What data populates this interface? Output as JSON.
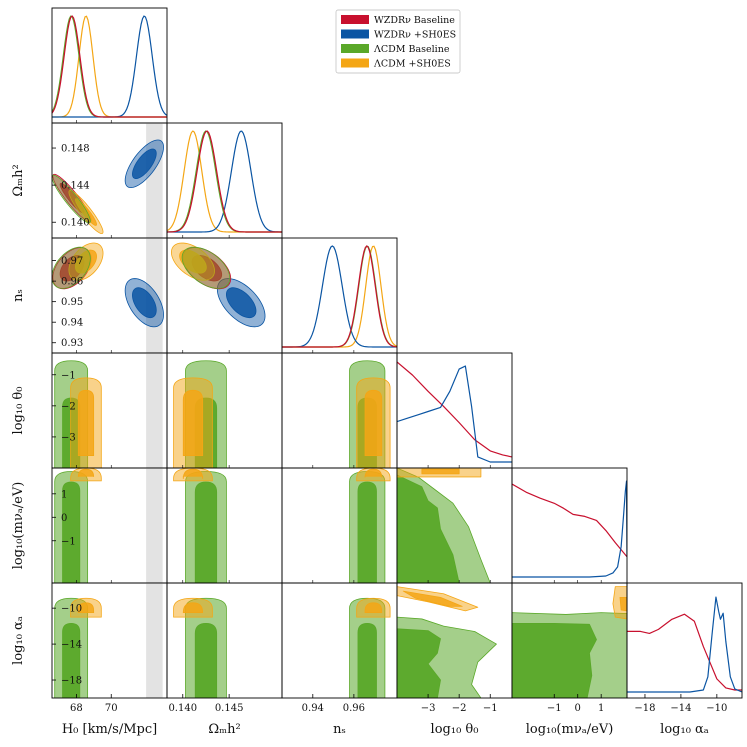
{
  "chart_data": {
    "type": "triangle-corner",
    "title": "",
    "legend": {
      "placement": "top-center",
      "entries": [
        {
          "label": "WZDRν Baseline",
          "color": "#c8102e"
        },
        {
          "label": "WZDRν +SH0ES",
          "color": "#0b55a3"
        },
        {
          "label": "ΛCDM Baseline",
          "color": "#5aa829"
        },
        {
          "label": "ΛCDM +SH0ES",
          "color": "#f4a615"
        }
      ]
    },
    "parameters": [
      {
        "key": "H0",
        "label": "H₀ [km/s/Mpc]",
        "range": [
          66.6,
          73.2
        ],
        "ticks": [
          68,
          70
        ]
      },
      {
        "key": "omh2",
        "label": "Ωₘh²",
        "range": [
          0.1383,
          0.1507
        ],
        "ticks": [
          0.14,
          0.145
        ],
        "tick_labels": [
          "0.140",
          "0.145"
        ],
        "y_ticks": [
          0.14,
          0.144,
          0.148
        ],
        "y_tick_labels": [
          "0.140",
          "0.144",
          "0.148"
        ]
      },
      {
        "key": "ns",
        "label": "nₛ",
        "range": [
          0.925,
          0.981
        ],
        "ticks": [
          0.94,
          0.96
        ],
        "tick_labels": [
          "0.94",
          "0.96"
        ],
        "y_ticks": [
          0.93,
          0.94,
          0.95,
          0.96,
          0.97
        ],
        "y_tick_labels": [
          "0.93",
          "0.94",
          "0.95",
          "0.96",
          "0.97"
        ]
      },
      {
        "key": "logtheta0",
        "label": "log₁₀ θ₀",
        "range": [
          -4.0,
          -0.3
        ],
        "ticks": [
          -3,
          -2,
          -1
        ],
        "y_ticks": [
          -3,
          -2,
          -1
        ],
        "tick_labels": [
          "−3",
          "−2",
          "−1"
        ]
      },
      {
        "key": "logm",
        "label": "log₁₀(mνₐ/eV)",
        "range": [
          -2.8,
          2.1
        ],
        "ticks": [
          -1,
          0,
          1
        ],
        "y_ticks": [
          -1,
          0,
          1
        ],
        "tick_labels": [
          "−1",
          "0",
          "1"
        ]
      },
      {
        "key": "logalpha",
        "label": "log₁₀ αₐ",
        "range": [
          -20,
          -7.2
        ],
        "ticks": [
          -18,
          -14,
          -10
        ],
        "y_ticks": [
          -18,
          -14,
          -10
        ],
        "tick_labels": [
          "−18",
          "−14",
          "−10"
        ]
      }
    ],
    "shaded_band": {
      "parameter": "H0",
      "from": 72.0,
      "to": 72.95,
      "color": "#dcdcdc"
    },
    "series": [
      {
        "name": "ΛCDM Baseline",
        "color": "#5aa829",
        "means": {
          "H0": 67.7,
          "omh2": 0.1425,
          "ns": 0.9665
        },
        "sigmas": {
          "H0": 0.45,
          "omh2": 0.00105,
          "ns": 0.0041
        },
        "correlations": {
          "H0-omh2": -0.92,
          "H0-ns": 0.45,
          "omh2-ns": -0.5
        }
      },
      {
        "name": "ΛCDM +SH0ES",
        "color": "#f4a615",
        "means": {
          "H0": 68.55,
          "omh2": 0.1411,
          "ns": 0.9695
        },
        "sigmas": {
          "H0": 0.4,
          "omh2": 0.00095,
          "ns": 0.0037
        },
        "correlations": {
          "H0-omh2": -0.92,
          "H0-ns": 0.45,
          "omh2-ns": -0.5
        }
      },
      {
        "name": "WZDRν Baseline",
        "color": "#c8102e",
        "means": {
          "H0": 67.75,
          "omh2": 0.1426,
          "ns": 0.9663
        },
        "sigmas": {
          "H0": 0.45,
          "omh2": 0.00105,
          "ns": 0.0041
        },
        "correlations": {
          "H0-omh2": -0.92,
          "H0-ns": 0.45,
          "omh2-ns": -0.5
        },
        "logtheta0_curve": [
          [
            -4.0,
            0.99
          ],
          [
            -3.5,
            0.86
          ],
          [
            -3.0,
            0.7
          ],
          [
            -2.5,
            0.55
          ],
          [
            -2.0,
            0.39
          ],
          [
            -1.5,
            0.22
          ],
          [
            -1.0,
            0.11
          ],
          [
            -0.6,
            0.07
          ],
          [
            -0.3,
            0.05
          ]
        ],
        "logm_curve": [
          [
            -2.8,
            0.92
          ],
          [
            -2.2,
            0.84
          ],
          [
            -1.6,
            0.78
          ],
          [
            -1.0,
            0.73
          ],
          [
            -0.6,
            0.68
          ],
          [
            -0.2,
            0.62
          ],
          [
            0.3,
            0.6
          ],
          [
            0.8,
            0.56
          ],
          [
            1.2,
            0.46
          ],
          [
            1.6,
            0.34
          ],
          [
            2.1,
            0.2
          ]
        ],
        "logalpha_curve": [
          [
            -20,
            0.6
          ],
          [
            -18.5,
            0.6
          ],
          [
            -17.5,
            0.58
          ],
          [
            -16.5,
            0.62
          ],
          [
            -15,
            0.72
          ],
          [
            -13.6,
            0.77
          ],
          [
            -12.5,
            0.7
          ],
          [
            -11.5,
            0.45
          ],
          [
            -10.8,
            0.3
          ],
          [
            -10,
            0.13
          ],
          [
            -9,
            0.04
          ],
          [
            -8,
            0.02
          ],
          [
            -7.2,
            0.02
          ]
        ]
      },
      {
        "name": "WZDRν +SH0ES",
        "color": "#0b55a3",
        "means": {
          "H0": 71.9,
          "omh2": 0.1463,
          "ns": 0.9495
        },
        "sigmas": {
          "H0": 0.45,
          "omh2": 0.00105,
          "ns": 0.0048
        },
        "correlations": {
          "H0-omh2": 0.7,
          "H0-ns": -0.5,
          "omh2-ns": -0.55
        },
        "logtheta0_curve": [
          [
            -4.0,
            0.4
          ],
          [
            -3.7,
            0.43
          ],
          [
            -3.3,
            0.47
          ],
          [
            -3.0,
            0.5
          ],
          [
            -2.6,
            0.54
          ],
          [
            -2.3,
            0.7
          ],
          [
            -2.0,
            0.92
          ],
          [
            -1.8,
            0.95
          ],
          [
            -1.6,
            0.55
          ],
          [
            -1.4,
            0.05
          ],
          [
            -1.0,
            0.0
          ],
          [
            -0.3,
            0.0
          ]
        ],
        "logm_curve": [
          [
            -2.8,
            0
          ],
          [
            0.5,
            0
          ],
          [
            1.2,
            0.01
          ],
          [
            1.5,
            0.04
          ],
          [
            1.7,
            0.1
          ],
          [
            1.85,
            0.3
          ],
          [
            1.95,
            0.6
          ],
          [
            2.03,
            0.85
          ],
          [
            2.08,
            0.95
          ],
          [
            2.1,
            0.2
          ]
        ],
        "logalpha_curve": [
          [
            -20,
            0
          ],
          [
            -13,
            0
          ],
          [
            -11.5,
            0.02
          ],
          [
            -11,
            0.15
          ],
          [
            -10.5,
            0.6
          ],
          [
            -10.1,
            0.94
          ],
          [
            -9.8,
            0.8
          ],
          [
            -9.6,
            0.72
          ],
          [
            -9.3,
            0.78
          ],
          [
            -9.0,
            0.5
          ],
          [
            -8.5,
            0.15
          ],
          [
            -8,
            0.03
          ],
          [
            -7.2,
            0
          ]
        ]
      }
    ]
  }
}
